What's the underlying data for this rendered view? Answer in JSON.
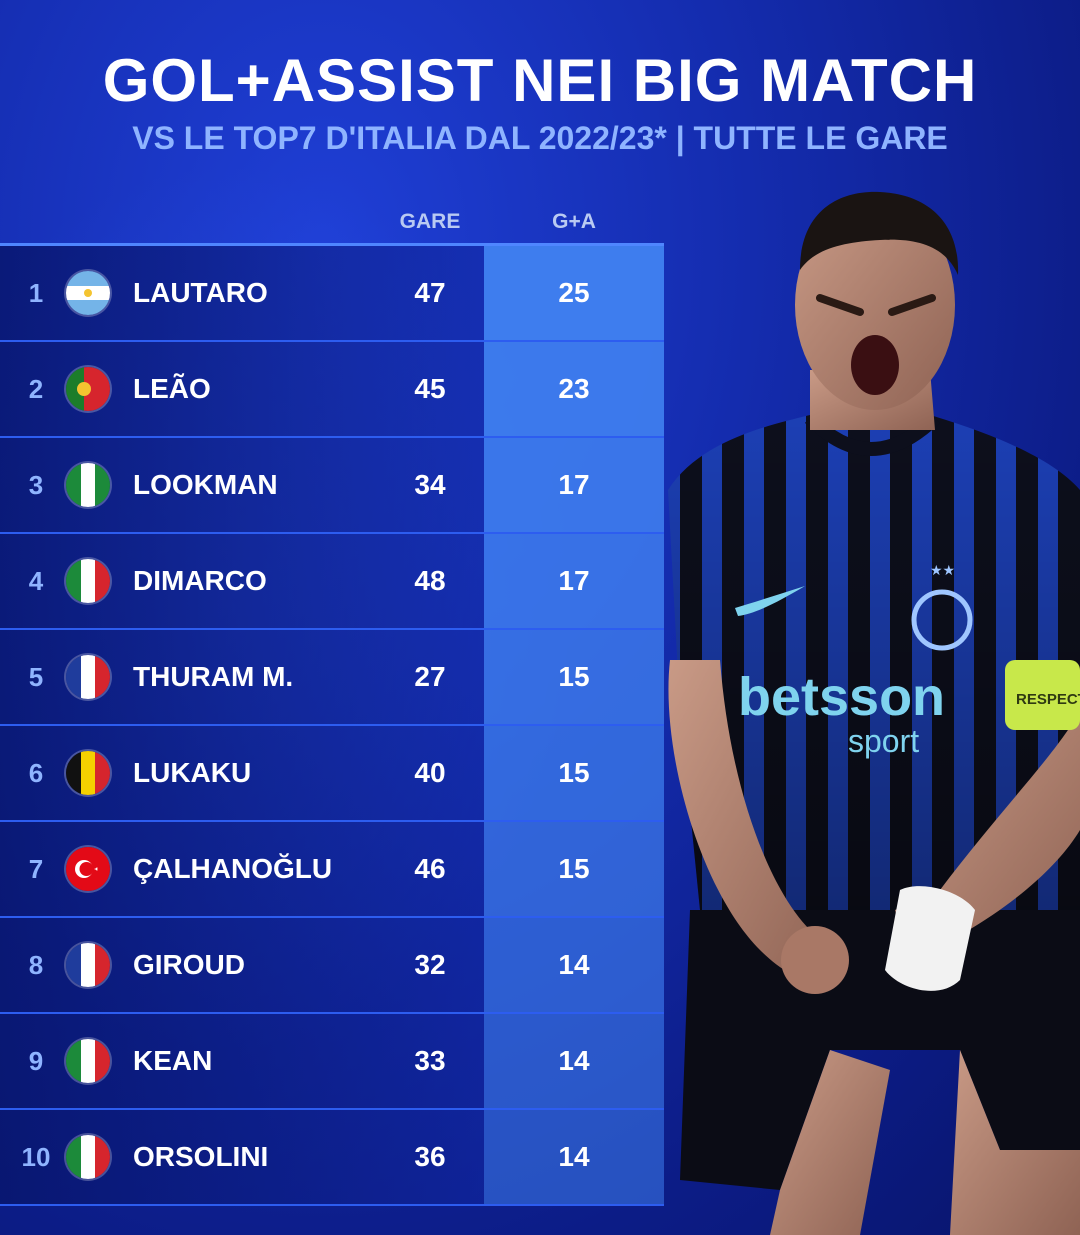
{
  "header": {
    "title": "GOL+ASSIST NEI BIG MATCH",
    "subtitle": "VS LE TOP7 D'ITALIA DAL 2022/23* | TUTTE LE GARE"
  },
  "table": {
    "columns": {
      "gare": "GARE",
      "ga": "G+A"
    },
    "rows": [
      {
        "rank": "1",
        "player": "LAUTARO",
        "gare": "47",
        "ga": "25",
        "flag_icon": "argentina-flag-icon",
        "ga_level": 1.0
      },
      {
        "rank": "2",
        "player": "LEÃO",
        "gare": "45",
        "ga": "23",
        "flag_icon": "portugal-flag-icon",
        "ga_level": 0.92
      },
      {
        "rank": "3",
        "player": "LOOKMAN",
        "gare": "34",
        "ga": "17",
        "flag_icon": "nigeria-flag-icon",
        "ga_level": 0.68
      },
      {
        "rank": "4",
        "player": "DIMARCO",
        "gare": "48",
        "ga": "17",
        "flag_icon": "italy-flag-icon",
        "ga_level": 0.68
      },
      {
        "rank": "5",
        "player": "THURAM M.",
        "gare": "27",
        "ga": "15",
        "flag_icon": "france-flag-icon",
        "ga_level": 0.6
      },
      {
        "rank": "6",
        "player": "LUKAKU",
        "gare": "40",
        "ga": "15",
        "flag_icon": "belgium-flag-icon",
        "ga_level": 0.6
      },
      {
        "rank": "7",
        "player": "ÇALHANOĞLU",
        "gare": "46",
        "ga": "15",
        "flag_icon": "turkey-flag-icon",
        "ga_level": 0.6
      },
      {
        "rank": "8",
        "player": "GIROUD",
        "gare": "32",
        "ga": "14",
        "flag_icon": "france-flag-icon",
        "ga_level": 0.56
      },
      {
        "rank": "9",
        "player": "KEAN",
        "gare": "33",
        "ga": "14",
        "flag_icon": "italy-flag-icon",
        "ga_level": 0.56
      },
      {
        "rank": "10",
        "player": "ORSOLINI",
        "gare": "36",
        "ga": "14",
        "flag_icon": "italy-flag-icon",
        "ga_level": 0.56
      }
    ]
  },
  "photo": {
    "sponsor_text": "betsson",
    "sponsor_sub": "sport",
    "armband_text": "RESPECT"
  },
  "colors": {
    "background": "#142cae",
    "ga_column": "#3e7dee",
    "rank_text": "#8fb4ff",
    "divider": "#2d5df0"
  }
}
